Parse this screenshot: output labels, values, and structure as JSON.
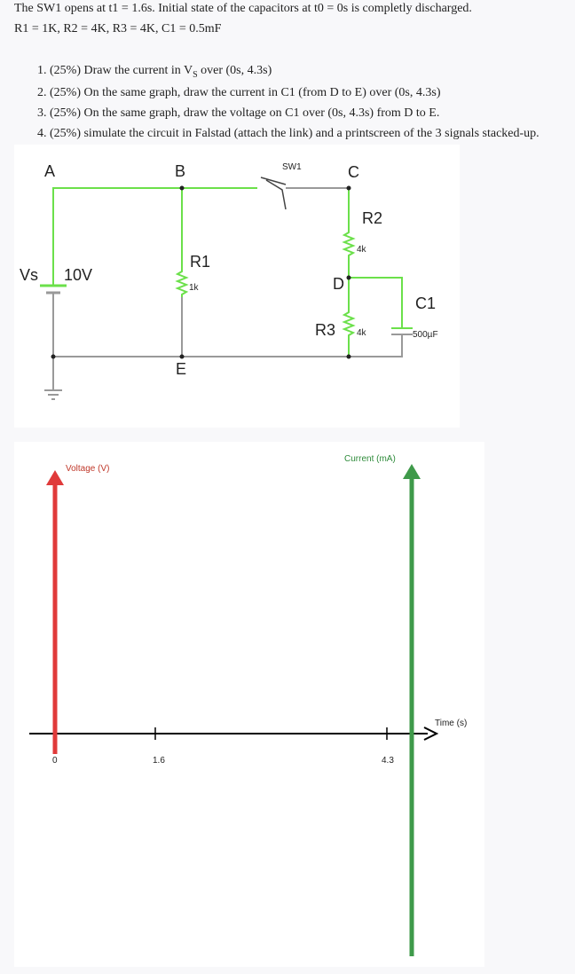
{
  "header": {
    "line1": "The SW1 opens at t1 = 1.6s. Initial state of the capacitors at t0 = 0s is completly discharged.",
    "line2": "R1 = 1K, R2 = 4K, R3 = 4K, C1 = 0.5mF"
  },
  "questions": [
    {
      "number": "1.",
      "text": "(25%) Draw the current in V",
      "sub": "S",
      "tail": " over (0s, 4.3s)"
    },
    {
      "number": "2.",
      "text": "(25%) On the same graph, draw the current in C1 (from D to E) over (0s, 4.3s)"
    },
    {
      "number": "3.",
      "text": "(25%) On the same graph, draw the voltage on C1 over (0s, 4.3s) from D to E."
    },
    {
      "number": "4.",
      "text": "(25%) simulate the circuit in Falstad (attach the link) and a printscreen of the 3 signals stacked-up."
    }
  ],
  "circuit": {
    "nodes": [
      "A",
      "B",
      "C",
      "D",
      "E"
    ],
    "switch": "SW1",
    "source": {
      "name": "Vs",
      "value": "10V"
    },
    "r1": {
      "name": "R1",
      "value": "1k"
    },
    "r2": {
      "name": "R2",
      "value": "4k"
    },
    "r3": {
      "name": "R3",
      "value": "4k"
    },
    "c1": {
      "name": "C1",
      "value": "500µF"
    }
  },
  "graph": {
    "voltage_axis": "Voltage (V)",
    "current_axis": "Current (mA)",
    "time_axis": "Time (s)",
    "time_ticks": [
      "0",
      "1.6",
      "4.3"
    ]
  }
}
